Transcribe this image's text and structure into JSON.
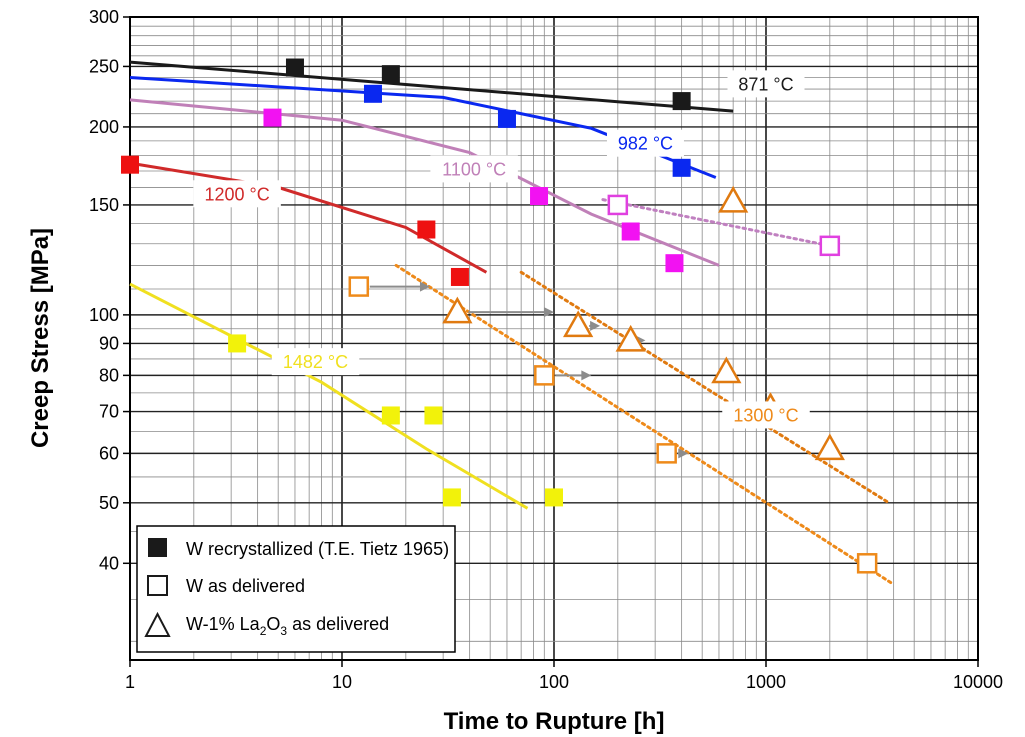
{
  "chart_data": {
    "type": "scatter",
    "x_scale": "log",
    "y_scale": "log",
    "xlim": [
      1,
      10000
    ],
    "ylim": [
      28,
      300
    ],
    "grid": true,
    "xlabel": "Time to Rupture [h]",
    "ylabel": "Creep Stress [MPa]",
    "x_ticks": [
      {
        "value": 1,
        "label": "1"
      },
      {
        "value": 10,
        "label": "10"
      },
      {
        "value": 100,
        "label": "100"
      },
      {
        "value": 1000,
        "label": "1000"
      },
      {
        "value": 10000,
        "label": "10000"
      }
    ],
    "y_ticks": [
      {
        "value": 40,
        "label": "40"
      },
      {
        "value": 50,
        "label": "50"
      },
      {
        "value": 60,
        "label": "60"
      },
      {
        "value": 70,
        "label": "70"
      },
      {
        "value": 80,
        "label": "80"
      },
      {
        "value": 90,
        "label": "90"
      },
      {
        "value": 100,
        "label": "100"
      },
      {
        "value": 150,
        "label": "150"
      },
      {
        "value": 200,
        "label": "200"
      },
      {
        "value": 250,
        "label": "250"
      },
      {
        "value": 300,
        "label": "300"
      }
    ],
    "legend": {
      "position": "bottom-left",
      "entries": [
        {
          "marker": "filled-square",
          "label": "W recrystallized (T.E. Tietz 1965)"
        },
        {
          "marker": "open-square",
          "label": "W as delivered"
        },
        {
          "marker": "open-triangle",
          "label": "W-1% La",
          "sub1": "2",
          "mid": "O",
          "sub2": "3",
          "tail": " as delivered"
        }
      ]
    },
    "series": [
      {
        "temperature": "871 °C",
        "color": "#1a1a1a",
        "marker": "filled-square",
        "line_style": "solid",
        "points": [
          [
            6,
            249
          ],
          [
            17,
            243
          ],
          [
            400,
            220
          ]
        ],
        "fit": [
          [
            1,
            254
          ],
          [
            700,
            212
          ]
        ],
        "label_anchor": [
          1000,
          234
        ]
      },
      {
        "temperature": "982 °C",
        "color": "#0a28f0",
        "marker": "filled-square",
        "line_style": "solid",
        "points": [
          [
            14,
            226
          ],
          [
            60,
            206
          ],
          [
            400,
            172
          ]
        ],
        "fit": [
          [
            1,
            240
          ],
          [
            30,
            223
          ],
          [
            150,
            199
          ],
          [
            580,
            166
          ]
        ],
        "label_anchor": [
          270,
          188
        ]
      },
      {
        "temperature": "1100 °C",
        "color": "#f212f2",
        "line_color": "#c080b8",
        "marker": "filled-square",
        "line_style": "solid",
        "points": [
          [
            4.7,
            207
          ],
          [
            85,
            155
          ],
          [
            230,
            136
          ],
          [
            370,
            121
          ]
        ],
        "fit": [
          [
            1,
            221
          ],
          [
            10,
            205
          ],
          [
            40,
            182
          ],
          [
            150,
            145
          ],
          [
            600,
            120
          ]
        ],
        "label_anchor": [
          42,
          171
        ]
      },
      {
        "temperature": "1200 °C",
        "color": "#ee1111",
        "line_color": "#d02a2a",
        "marker": "filled-square",
        "line_style": "solid",
        "points": [
          [
            1,
            174
          ],
          [
            25,
            137
          ],
          [
            36,
            115
          ]
        ],
        "fit": [
          [
            1,
            175
          ],
          [
            5,
            160
          ],
          [
            20,
            138
          ],
          [
            48,
            117
          ]
        ],
        "label_anchor": [
          3.2,
          156
        ]
      },
      {
        "temperature": "1482 °C",
        "color": "#f2f20a",
        "line_color": "#f0e020",
        "marker": "filled-square",
        "line_style": "solid",
        "points": [
          [
            3.2,
            90
          ],
          [
            17,
            69
          ],
          [
            27,
            69
          ],
          [
            33,
            51
          ],
          [
            100,
            51
          ]
        ],
        "fit": [
          [
            1,
            112
          ],
          [
            8,
            78
          ],
          [
            25,
            61
          ],
          [
            75,
            49
          ]
        ],
        "label_anchor": [
          7.5,
          84
        ]
      },
      {
        "temperature": "1100 °C",
        "color": "#e040e0",
        "line_color": "#c080c0",
        "marker": "open-square",
        "line_style": "dotted",
        "points": [
          [
            200,
            150
          ],
          [
            2000,
            129
          ]
        ],
        "fit": [
          [
            170,
            153
          ],
          [
            2000,
            129
          ]
        ]
      },
      {
        "temperature": "1300 °C",
        "color": "#ee8a1a",
        "marker": "open-square",
        "line_style": "dotted",
        "points": [
          [
            12,
            111
          ],
          [
            90,
            80
          ],
          [
            340,
            60
          ],
          [
            3000,
            40
          ]
        ],
        "arrows": [
          [
            [
              12,
              111
            ],
            [
              26,
              111
            ]
          ],
          [
            [
              90,
              80
            ],
            [
              150,
              80
            ]
          ],
          [
            [
              340,
              60
            ],
            [
              430,
              60
            ]
          ]
        ],
        "fit": [
          [
            18,
            120
          ],
          [
            4000,
            37
          ]
        ],
        "label_anchor": [
          1000,
          69
        ]
      },
      {
        "temperature": "1482 °C",
        "color": "#e07a10",
        "marker": "open-triangle",
        "line_style": "dotted",
        "points": [
          [
            35,
            101
          ],
          [
            130,
            96
          ],
          [
            230,
            91
          ],
          [
            650,
            81
          ],
          [
            1050,
            71
          ],
          [
            2000,
            61
          ],
          [
            700,
            152
          ]
        ],
        "arrows": [
          [
            [
              35,
              101
            ],
            [
              100,
              101
            ]
          ],
          [
            [
              130,
              96
            ],
            [
              165,
              96
            ]
          ],
          [
            [
              230,
              91
            ],
            [
              270,
              91
            ]
          ]
        ],
        "fit": [
          [
            70,
            117
          ],
          [
            3800,
            50
          ]
        ]
      }
    ]
  }
}
